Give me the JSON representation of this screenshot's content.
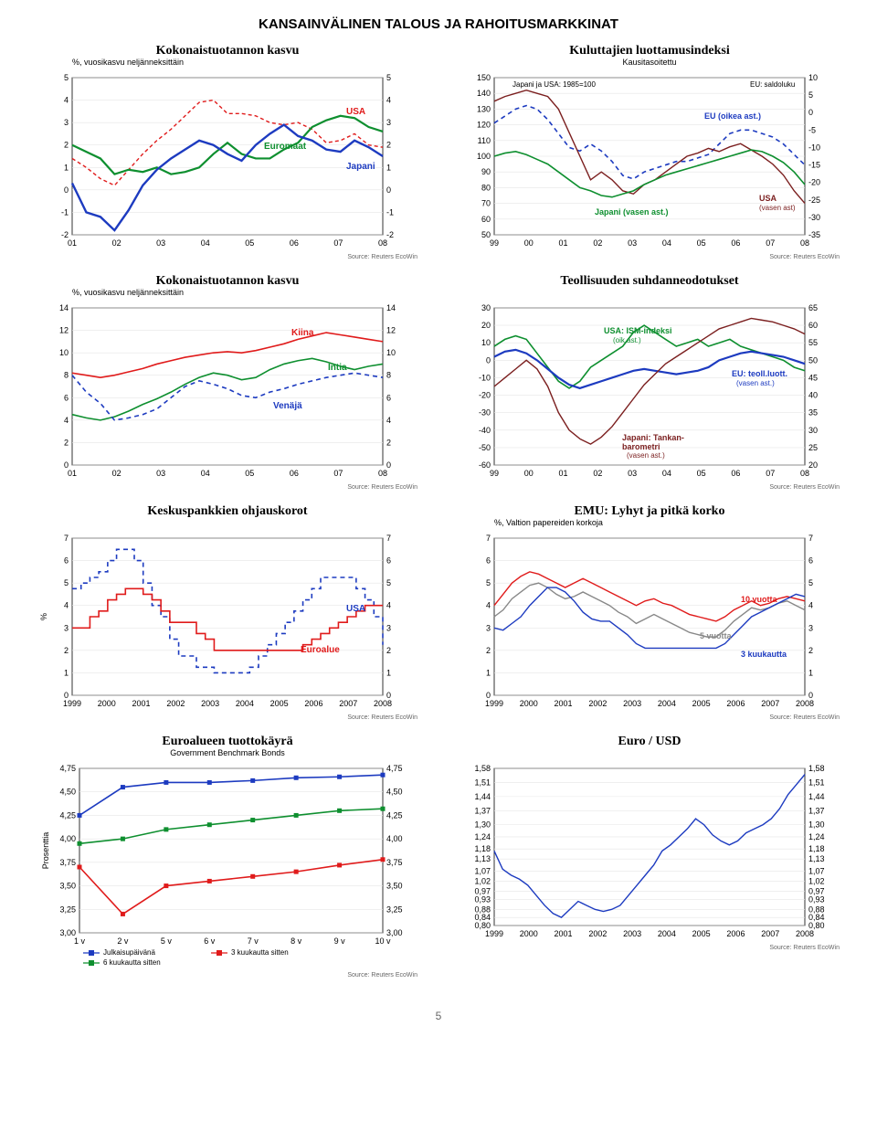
{
  "page_title": "KANSAINVÄLINEN TALOUS JA RAHOITUSMARKKINAT",
  "page_number": "5",
  "source_text": "Source: Reuters EcoWin",
  "chart1": {
    "title": "Kokonaistuotannon kasvu",
    "subtitle": "%, vuosikasvu neljänneksittäin",
    "yticks": [
      -2,
      -1,
      0,
      1,
      2,
      3,
      4,
      5
    ],
    "xticks": [
      "01",
      "02",
      "03",
      "04",
      "05",
      "06",
      "07",
      "08"
    ],
    "bg": "#ffffff",
    "grid": "#e6e6e6",
    "axis": "#000",
    "series": [
      {
        "name": "USA",
        "label": "USA",
        "color": "#e01b1b",
        "width": 1.4,
        "dash": "4 3",
        "data": [
          1.4,
          1.0,
          0.5,
          0.2,
          0.9,
          1.6,
          2.2,
          2.7,
          3.3,
          3.9,
          4.0,
          3.4,
          3.4,
          3.3,
          3.0,
          2.9,
          3.0,
          2.7,
          2.1,
          2.2,
          2.5,
          2.0,
          1.9
        ]
      },
      {
        "name": "Euromaat",
        "label": "Euromaat",
        "color": "#0e8f2f",
        "width": 2.2,
        "dash": "",
        "data": [
          2.0,
          1.7,
          1.4,
          0.7,
          0.9,
          0.8,
          1.0,
          0.7,
          0.8,
          1.0,
          1.6,
          2.1,
          1.6,
          1.4,
          1.4,
          1.8,
          2.1,
          2.8,
          3.1,
          3.3,
          3.2,
          2.8,
          2.6
        ]
      },
      {
        "name": "Japani",
        "label": "Japani",
        "color": "#1d3bc0",
        "width": 2.4,
        "dash": "",
        "data": [
          0.3,
          -1.0,
          -1.2,
          -1.8,
          -0.9,
          0.2,
          0.9,
          1.4,
          1.8,
          2.2,
          2.0,
          1.6,
          1.3,
          2.0,
          2.5,
          2.9,
          2.4,
          2.2,
          1.8,
          1.7,
          2.2,
          1.9,
          1.5
        ]
      }
    ]
  },
  "chart2": {
    "title": "Kuluttajien luottamusindeksi",
    "subtitle": "Kausitasoitettu",
    "yL": [
      50,
      60,
      70,
      80,
      90,
      100,
      110,
      120,
      130,
      140,
      150
    ],
    "yR": [
      -35,
      -30,
      -25,
      -20,
      -15,
      -10,
      -5,
      0,
      5,
      10
    ],
    "xticks": [
      "99",
      "00",
      "01",
      "02",
      "03",
      "04",
      "05",
      "06",
      "07",
      "08"
    ],
    "label_left": "Japani ja USA: 1985=100",
    "label_right": "EU: saldoluku",
    "labels": {
      "eu": "EU (oikea ast.)",
      "usa": "USA",
      "usa_sub": "(vasen ast)",
      "jp": "Japani (vasen ast.)"
    },
    "bg": "#ffffff",
    "grid": "#e6e6e6",
    "axis": "#000",
    "series": [
      {
        "name": "EU",
        "color": "#1d3bc0",
        "width": 1.6,
        "dash": "5 4",
        "axis": "R",
        "data": [
          -3,
          -1,
          1,
          2,
          1,
          -2,
          -6,
          -10,
          -11,
          -9,
          -11,
          -14,
          -18,
          -19,
          -17,
          -16,
          -15,
          -14,
          -14,
          -13,
          -12,
          -9,
          -6,
          -5,
          -5,
          -6,
          -7,
          -9,
          -12,
          -15
        ]
      },
      {
        "name": "USA",
        "color": "#7b1f1f",
        "width": 1.4,
        "dash": "",
        "axis": "L",
        "data": [
          135,
          138,
          140,
          142,
          140,
          138,
          130,
          115,
          100,
          85,
          90,
          85,
          78,
          76,
          82,
          85,
          90,
          95,
          100,
          102,
          105,
          103,
          106,
          108,
          104,
          100,
          95,
          88,
          78,
          70
        ]
      },
      {
        "name": "Japani",
        "color": "#0e8f2f",
        "width": 1.6,
        "dash": "",
        "axis": "L",
        "data": [
          100,
          102,
          103,
          101,
          98,
          95,
          90,
          85,
          80,
          78,
          75,
          74,
          76,
          78,
          82,
          85,
          88,
          90,
          92,
          94,
          96,
          98,
          100,
          102,
          104,
          103,
          100,
          96,
          90,
          82
        ]
      }
    ]
  },
  "chart3": {
    "title": "Kokonaistuotannon kasvu",
    "subtitle": "%, vuosikasvu neljänneksittäin",
    "yticks": [
      0,
      2,
      4,
      6,
      8,
      10,
      12,
      14
    ],
    "xticks": [
      "01",
      "02",
      "03",
      "04",
      "05",
      "06",
      "07",
      "08"
    ],
    "bg": "#ffffff",
    "grid": "#e6e6e6",
    "axis": "#000",
    "series": [
      {
        "name": "Kiina",
        "label": "Kiina",
        "color": "#e01b1b",
        "width": 1.6,
        "dash": "",
        "data": [
          8.2,
          8.0,
          7.8,
          8.0,
          8.3,
          8.6,
          9.0,
          9.3,
          9.6,
          9.8,
          10.0,
          10.1,
          10.0,
          10.2,
          10.5,
          10.8,
          11.2,
          11.5,
          11.8,
          11.6,
          11.4,
          11.2,
          11.0
        ]
      },
      {
        "name": "Intia",
        "label": "Intia",
        "color": "#0e8f2f",
        "width": 1.6,
        "dash": "",
        "data": [
          4.5,
          4.2,
          4.0,
          4.3,
          4.8,
          5.4,
          5.9,
          6.5,
          7.2,
          7.8,
          8.2,
          8.0,
          7.6,
          7.8,
          8.5,
          9.0,
          9.3,
          9.5,
          9.2,
          8.8,
          8.5,
          8.8,
          9.0
        ]
      },
      {
        "name": "Venäjä",
        "label": "Venäjä",
        "color": "#1d3bc0",
        "width": 1.6,
        "dash": "5 4",
        "data": [
          8.0,
          6.5,
          5.5,
          4.0,
          4.2,
          4.5,
          5.0,
          6.0,
          7.0,
          7.5,
          7.2,
          6.8,
          6.2,
          6.0,
          6.5,
          6.8,
          7.2,
          7.5,
          7.8,
          8.0,
          8.2,
          8.0,
          7.8
        ]
      }
    ]
  },
  "chart4": {
    "title": "Teollisuuden suhdanneodotukset",
    "yL": [
      -60,
      -50,
      -40,
      -30,
      -20,
      -10,
      0,
      10,
      20,
      30
    ],
    "yR": [
      20,
      25,
      30,
      35,
      40,
      45,
      50,
      55,
      60,
      65
    ],
    "xticks": [
      "99",
      "00",
      "01",
      "02",
      "03",
      "04",
      "05",
      "06",
      "07",
      "08"
    ],
    "labels": {
      "usa": "USA: ISM-indeksi",
      "usa_sub": "(oik.ast.)",
      "eu": "EU: teoll.luott.",
      "eu_sub": "(vasen ast.)",
      "jp": "Japani: Tankan-",
      "jp2": "barometri",
      "jp_sub": "(vasen ast.)"
    },
    "bg": "#ffffff",
    "grid": "#e6e6e6",
    "axis": "#000",
    "series": [
      {
        "name": "USA-ISM",
        "color": "#0e8f2f",
        "width": 1.6,
        "dash": "",
        "axis": "R",
        "data": [
          54,
          56,
          57,
          56,
          52,
          48,
          44,
          42,
          44,
          48,
          50,
          52,
          54,
          58,
          60,
          58,
          56,
          54,
          55,
          56,
          54,
          55,
          56,
          54,
          53,
          52,
          51,
          50,
          48,
          47
        ]
      },
      {
        "name": "EU",
        "color": "#1d3bc0",
        "width": 2.2,
        "dash": "",
        "axis": "L",
        "data": [
          2,
          5,
          6,
          4,
          0,
          -5,
          -10,
          -14,
          -16,
          -14,
          -12,
          -10,
          -8,
          -6,
          -5,
          -6,
          -7,
          -8,
          -7,
          -6,
          -4,
          0,
          2,
          4,
          5,
          4,
          3,
          2,
          0,
          -2
        ]
      },
      {
        "name": "Japani",
        "color": "#7b1f1f",
        "width": 1.4,
        "dash": "",
        "axis": "L",
        "data": [
          -15,
          -10,
          -5,
          0,
          -5,
          -15,
          -30,
          -40,
          -45,
          -48,
          -44,
          -38,
          -30,
          -22,
          -14,
          -8,
          -2,
          2,
          6,
          10,
          14,
          18,
          20,
          22,
          24,
          23,
          22,
          20,
          18,
          15
        ]
      }
    ]
  },
  "chart5": {
    "title": "Keskuspankkien ohjauskorot",
    "y_axis_label": "%",
    "yticks": [
      0,
      1,
      2,
      3,
      4,
      5,
      6,
      7
    ],
    "xticks": [
      "1999",
      "2000",
      "2001",
      "2002",
      "2003",
      "2004",
      "2005",
      "2006",
      "2007",
      "2008"
    ],
    "bg": "#ffffff",
    "grid": "#e6e6e6",
    "axis": "#000",
    "series": [
      {
        "name": "USA",
        "label": "USA",
        "color": "#1d3bc0",
        "width": 1.6,
        "dash": "5 4",
        "step": true,
        "data": [
          4.75,
          5.0,
          5.25,
          5.5,
          6.0,
          6.5,
          6.5,
          6.0,
          5.0,
          4.0,
          3.5,
          2.5,
          1.75,
          1.75,
          1.25,
          1.25,
          1.0,
          1.0,
          1.0,
          1.0,
          1.25,
          1.75,
          2.25,
          2.75,
          3.25,
          3.75,
          4.25,
          4.75,
          5.25,
          5.25,
          5.25,
          5.25,
          4.75,
          4.25,
          3.5,
          2.25
        ]
      },
      {
        "name": "Euroalue",
        "label": "Euroalue",
        "color": "#e01b1b",
        "width": 1.6,
        "dash": "",
        "step": true,
        "data": [
          3.0,
          3.0,
          3.5,
          3.75,
          4.25,
          4.5,
          4.75,
          4.75,
          4.5,
          4.25,
          3.75,
          3.25,
          3.25,
          3.25,
          2.75,
          2.5,
          2.0,
          2.0,
          2.0,
          2.0,
          2.0,
          2.0,
          2.0,
          2.0,
          2.0,
          2.0,
          2.25,
          2.5,
          2.75,
          3.0,
          3.25,
          3.5,
          3.75,
          4.0,
          4.0,
          4.0
        ]
      }
    ]
  },
  "chart6": {
    "title": "EMU: Lyhyt ja pitkä korko",
    "subtitle": "%, Valtion papereiden korkoja",
    "yticks": [
      0,
      1,
      2,
      3,
      4,
      5,
      6,
      7
    ],
    "xticks": [
      "1999",
      "2000",
      "2001",
      "2002",
      "2003",
      "2004",
      "2005",
      "2006",
      "2007",
      "2008"
    ],
    "labels": {
      "l10": "10 vuotta",
      "l5": "5 vuotta",
      "l3": "3 kuukautta"
    },
    "bg": "#ffffff",
    "grid": "#e6e6e6",
    "axis": "#000",
    "series": [
      {
        "name": "10v",
        "color": "#e01b1b",
        "width": 1.4,
        "dash": "",
        "data": [
          4.0,
          4.5,
          5.0,
          5.3,
          5.5,
          5.4,
          5.2,
          5.0,
          4.8,
          5.0,
          5.2,
          5.0,
          4.8,
          4.6,
          4.4,
          4.2,
          4.0,
          4.2,
          4.3,
          4.1,
          4.0,
          3.8,
          3.6,
          3.5,
          3.4,
          3.3,
          3.5,
          3.8,
          4.0,
          4.2,
          4.0,
          4.1,
          4.3,
          4.4,
          4.3,
          4.2
        ]
      },
      {
        "name": "5v",
        "color": "#888888",
        "width": 1.4,
        "dash": "",
        "data": [
          3.5,
          3.8,
          4.3,
          4.6,
          4.9,
          5.0,
          4.8,
          4.5,
          4.3,
          4.4,
          4.6,
          4.4,
          4.2,
          4.0,
          3.7,
          3.5,
          3.2,
          3.4,
          3.6,
          3.4,
          3.2,
          3.0,
          2.8,
          2.7,
          2.6,
          2.6,
          2.9,
          3.3,
          3.6,
          3.9,
          3.8,
          3.9,
          4.1,
          4.2,
          4.0,
          3.8
        ]
      },
      {
        "name": "3kk",
        "color": "#1d3bc0",
        "width": 1.4,
        "dash": "",
        "data": [
          3.0,
          2.9,
          3.2,
          3.5,
          4.0,
          4.4,
          4.8,
          4.8,
          4.6,
          4.2,
          3.7,
          3.4,
          3.3,
          3.3,
          3.0,
          2.7,
          2.3,
          2.1,
          2.1,
          2.1,
          2.1,
          2.1,
          2.1,
          2.1,
          2.1,
          2.1,
          2.3,
          2.7,
          3.1,
          3.5,
          3.7,
          3.9,
          4.1,
          4.3,
          4.5,
          4.4
        ]
      }
    ]
  },
  "chart7": {
    "title": "Euroalueen tuottokäyrä",
    "subtitle": "Government Benchmark Bonds",
    "y_axis_label": "Prosenttia",
    "yticks": [
      3.0,
      3.25,
      3.5,
      3.75,
      4.0,
      4.25,
      4.5,
      4.75
    ],
    "xticks": [
      "1 v",
      "2 v",
      "5 v",
      "6 v",
      "7 v",
      "8 v",
      "9 v",
      "10 v"
    ],
    "legend": [
      {
        "label": "Julkaisupäivänä",
        "color": "#1d3bc0",
        "marker": "square"
      },
      {
        "label": "3 kuukautta sitten",
        "color": "#e01b1b",
        "marker": "square"
      },
      {
        "label": "6 kuukautta sitten",
        "color": "#0e8f2f",
        "marker": "square"
      }
    ],
    "bg": "#ffffff",
    "grid": "#e6e6e6",
    "axis": "#000",
    "series": [
      {
        "name": "today",
        "color": "#1d3bc0",
        "width": 1.6,
        "data": [
          4.25,
          4.55,
          4.6,
          4.6,
          4.62,
          4.65,
          4.66,
          4.68
        ]
      },
      {
        "name": "3mo",
        "color": "#e01b1b",
        "width": 1.6,
        "data": [
          3.7,
          3.2,
          3.5,
          3.55,
          3.6,
          3.65,
          3.72,
          3.78
        ]
      },
      {
        "name": "6mo",
        "color": "#0e8f2f",
        "width": 1.6,
        "data": [
          3.95,
          4.0,
          4.1,
          4.15,
          4.2,
          4.25,
          4.3,
          4.32
        ]
      }
    ]
  },
  "chart8": {
    "title": "Euro / USD",
    "yticks": [
      0.8,
      0.84,
      0.88,
      0.93,
      0.97,
      1.02,
      1.07,
      1.13,
      1.18,
      1.24,
      1.3,
      1.37,
      1.44,
      1.51,
      1.58
    ],
    "xticks": [
      "1999",
      "2000",
      "2001",
      "2002",
      "2003",
      "2004",
      "2005",
      "2006",
      "2007",
      "2008"
    ],
    "bg": "#ffffff",
    "grid": "#e6e6e6",
    "axis": "#000",
    "series": [
      {
        "name": "eurusd",
        "color": "#1d3bc0",
        "width": 1.4,
        "dash": "",
        "data": [
          1.17,
          1.08,
          1.05,
          1.03,
          1.0,
          0.95,
          0.9,
          0.86,
          0.84,
          0.88,
          0.92,
          0.9,
          0.88,
          0.87,
          0.88,
          0.9,
          0.95,
          1.0,
          1.05,
          1.1,
          1.17,
          1.2,
          1.24,
          1.28,
          1.33,
          1.3,
          1.25,
          1.22,
          1.2,
          1.22,
          1.26,
          1.28,
          1.3,
          1.33,
          1.38,
          1.45,
          1.5,
          1.55
        ]
      }
    ]
  }
}
